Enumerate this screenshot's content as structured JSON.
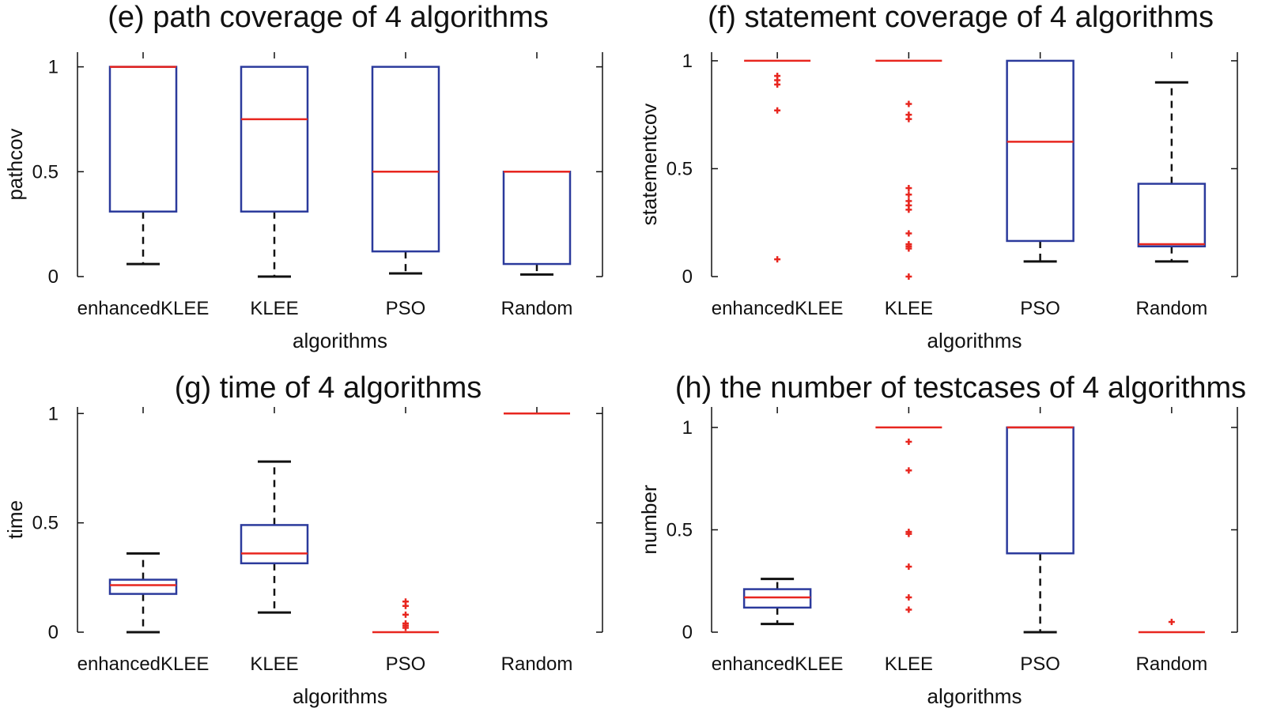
{
  "colors": {
    "box": "#2b3a9c",
    "median": "#e8261f",
    "whisker": "#111111",
    "outlier": "#e8261f",
    "axis": "#111111"
  },
  "chart_data": [
    {
      "type": "box",
      "title": "(e) path coverage of 4 algorithms",
      "xlabel": "algorithms",
      "ylabel": "pathcov",
      "ylim": [
        0,
        1.07
      ],
      "yticks": [
        0,
        0.5,
        1
      ],
      "ytick_labels": [
        "0",
        "0.5",
        "1"
      ],
      "categories": [
        "enhancedKLEE",
        "KLEE",
        "PSO",
        "Random"
      ],
      "boxes": [
        {
          "q1": 0.31,
          "median": 1.0,
          "q3": 1.0,
          "whisker_low": 0.06,
          "whisker_high": 1.0,
          "outliers": []
        },
        {
          "q1": 0.31,
          "median": 0.75,
          "q3": 1.0,
          "whisker_low": 0.0,
          "whisker_high": 1.0,
          "outliers": []
        },
        {
          "q1": 0.12,
          "median": 0.5,
          "q3": 1.0,
          "whisker_low": 0.015,
          "whisker_high": 1.0,
          "outliers": []
        },
        {
          "q1": 0.06,
          "median": 0.5,
          "q3": 0.5,
          "whisker_low": 0.01,
          "whisker_high": 0.5,
          "outliers": []
        }
      ]
    },
    {
      "type": "box",
      "title": "(f) statement coverage of 4 algorithms",
      "xlabel": "algorithms",
      "ylabel": "statementcov",
      "ylim": [
        0,
        1.04
      ],
      "yticks": [
        0,
        0.5,
        1
      ],
      "ytick_labels": [
        "0",
        "0.5",
        "1"
      ],
      "categories": [
        "enhancedKLEE",
        "KLEE",
        "PSO",
        "Random"
      ],
      "boxes": [
        {
          "q1": 1.0,
          "median": 1.0,
          "q3": 1.0,
          "whisker_low": 1.0,
          "whisker_high": 1.0,
          "outliers": [
            0.93,
            0.91,
            0.89,
            0.77,
            0.08
          ]
        },
        {
          "q1": 1.0,
          "median": 1.0,
          "q3": 1.0,
          "whisker_low": 1.0,
          "whisker_high": 1.0,
          "outliers": [
            0.8,
            0.75,
            0.73,
            0.41,
            0.38,
            0.35,
            0.33,
            0.31,
            0.2,
            0.15,
            0.14,
            0.13,
            0.0
          ]
        },
        {
          "q1": 0.165,
          "median": 0.625,
          "q3": 1.0,
          "whisker_low": 0.07,
          "whisker_high": 1.0,
          "outliers": []
        },
        {
          "q1": 0.14,
          "median": 0.15,
          "q3": 0.43,
          "whisker_low": 0.07,
          "whisker_high": 0.9,
          "outliers": []
        }
      ]
    },
    {
      "type": "box",
      "title": "(g) time of 4 algorithms",
      "xlabel": "algorithms",
      "ylabel": "time",
      "ylim": [
        0,
        1.03
      ],
      "yticks": [
        0,
        0.5,
        1
      ],
      "ytick_labels": [
        "0",
        "0.5",
        "1"
      ],
      "categories": [
        "enhancedKLEE",
        "KLEE",
        "PSO",
        "Random"
      ],
      "boxes": [
        {
          "q1": 0.175,
          "median": 0.215,
          "q3": 0.24,
          "whisker_low": 0.0,
          "whisker_high": 0.36,
          "outliers": []
        },
        {
          "q1": 0.315,
          "median": 0.36,
          "q3": 0.49,
          "whisker_low": 0.09,
          "whisker_high": 0.78,
          "outliers": []
        },
        {
          "q1": 0.0,
          "median": 0.0,
          "q3": 0.0,
          "whisker_low": 0.0,
          "whisker_high": 0.0,
          "outliers": [
            0.14,
            0.12,
            0.08,
            0.04,
            0.03,
            0.02
          ]
        },
        {
          "q1": 1.0,
          "median": 1.0,
          "q3": 1.0,
          "whisker_low": 1.0,
          "whisker_high": 1.0,
          "outliers": []
        }
      ]
    },
    {
      "type": "box",
      "title": "(h) the number of testcases of 4 algorithms",
      "xlabel": "algorithms",
      "ylabel": "number",
      "ylim": [
        0,
        1.1
      ],
      "yticks": [
        0,
        0.5,
        1
      ],
      "ytick_labels": [
        "0",
        "0.5",
        "1"
      ],
      "categories": [
        "enhancedKLEE",
        "KLEE",
        "PSO",
        "Random"
      ],
      "boxes": [
        {
          "q1": 0.12,
          "median": 0.17,
          "q3": 0.21,
          "whisker_low": 0.04,
          "whisker_high": 0.26,
          "outliers": []
        },
        {
          "q1": 1.0,
          "median": 1.0,
          "q3": 1.0,
          "whisker_low": 1.0,
          "whisker_high": 1.0,
          "outliers": [
            0.93,
            0.79,
            0.49,
            0.48,
            0.32,
            0.17,
            0.11
          ]
        },
        {
          "q1": 0.385,
          "median": 1.0,
          "q3": 1.0,
          "whisker_low": 0.0,
          "whisker_high": 1.0,
          "outliers": []
        },
        {
          "q1": 0.0,
          "median": 0.0,
          "q3": 0.0,
          "whisker_low": 0.0,
          "whisker_high": 0.0,
          "outliers": [
            0.05
          ]
        }
      ]
    }
  ]
}
